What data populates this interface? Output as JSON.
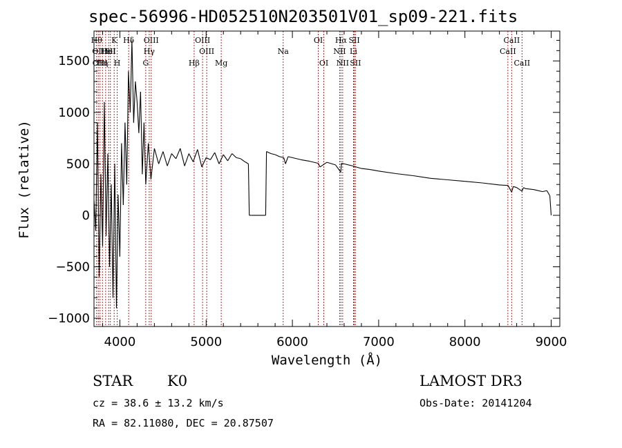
{
  "chart_data": {
    "type": "line",
    "title": "spec-56996-HD052510N203501V01_sp09-221.fits",
    "xlabel": "Wavelength (Å)",
    "ylabel": "Flux (relative)",
    "xlim": [
      3700,
      9100
    ],
    "ylim": [
      -1080,
      1790
    ],
    "xticks": [
      4000,
      5000,
      6000,
      7000,
      8000,
      9000
    ],
    "yticks": [
      -1000,
      -500,
      0,
      500,
      1000,
      1500
    ],
    "series": [
      {
        "name": "flux",
        "x": [
          3700,
          3720,
          3740,
          3760,
          3780,
          3800,
          3820,
          3840,
          3860,
          3880,
          3900,
          3920,
          3940,
          3960,
          3980,
          4000,
          4020,
          4040,
          4060,
          4080,
          4100,
          4120,
          4140,
          4160,
          4180,
          4200,
          4220,
          4240,
          4260,
          4280,
          4300,
          4330,
          4360,
          4400,
          4450,
          4500,
          4550,
          4600,
          4650,
          4700,
          4750,
          4800,
          4850,
          4900,
          4950,
          5000,
          5050,
          5100,
          5150,
          5200,
          5250,
          5300,
          5350,
          5400,
          5450,
          5490,
          5500,
          5520,
          5680,
          5690,
          5700,
          5750,
          5800,
          5850,
          5900,
          5920,
          5950,
          6000,
          6100,
          6200,
          6300,
          6320,
          6400,
          6500,
          6560,
          6570,
          6600,
          6700,
          6800,
          6900,
          7000,
          7200,
          7400,
          7600,
          7800,
          8000,
          8200,
          8400,
          8500,
          8542,
          8560,
          8600,
          8662,
          8680,
          8700,
          8800,
          8900,
          8950,
          8985,
          9000
        ],
        "y": [
          150,
          -150,
          900,
          -600,
          400,
          -300,
          1100,
          -200,
          600,
          -500,
          300,
          -800,
          500,
          -900,
          200,
          -400,
          700,
          100,
          900,
          300,
          1400,
          1000,
          1700,
          900,
          1300,
          1100,
          800,
          1200,
          400,
          900,
          300,
          700,
          350,
          650,
          500,
          620,
          480,
          600,
          550,
          650,
          480,
          600,
          520,
          640,
          470,
          560,
          540,
          610,
          500,
          590,
          530,
          600,
          560,
          550,
          520,
          500,
          0,
          0,
          0,
          0,
          620,
          600,
          590,
          570,
          560,
          500,
          570,
          560,
          540,
          525,
          505,
          470,
          515,
          490,
          420,
          505,
          500,
          480,
          455,
          445,
          430,
          405,
          385,
          360,
          345,
          330,
          315,
          295,
          290,
          225,
          280,
          270,
          235,
          270,
          260,
          250,
          230,
          240,
          190,
          0
        ]
      }
    ],
    "lines": [
      {
        "x": 3730,
        "label": "Hθ",
        "row": 1
      },
      {
        "x": 3750,
        "label": "OII",
        "row": 2
      },
      {
        "x": 3770,
        "label": "OIII",
        "row": 3
      },
      {
        "x": 3798,
        "label": "Hη",
        "row": 3
      },
      {
        "x": 3835,
        "label": "Hε",
        "row": 2
      },
      {
        "x": 3870,
        "label": "HeI",
        "row": 2
      },
      {
        "x": 3890,
        "label": "SII",
        "row": 2
      },
      {
        "x": 3934,
        "label": "K",
        "row": 1
      },
      {
        "x": 3969,
        "label": "H",
        "row": 3
      },
      {
        "x": 4102,
        "label": "Hδ",
        "row": 1
      },
      {
        "x": 4300,
        "label": "G",
        "row": 3
      },
      {
        "x": 4340,
        "label": "Hγ",
        "row": 2
      },
      {
        "x": 4363,
        "label": "OIII",
        "row": 1
      },
      {
        "x": 4861,
        "label": "Hβ",
        "row": 3
      },
      {
        "x": 4959,
        "label": "OIII",
        "row": 1
      },
      {
        "x": 5007,
        "label": "OIII",
        "row": 2
      },
      {
        "x": 5175,
        "label": "Mg",
        "row": 3
      },
      {
        "x": 5893,
        "label": "Na",
        "row": 2
      },
      {
        "x": 6300,
        "label": "OI",
        "row": 1
      },
      {
        "x": 6364,
        "label": "OI",
        "row": 3
      },
      {
        "x": 6548,
        "label": "NII",
        "row": 2
      },
      {
        "x": 6563,
        "label": "Hα",
        "row": 1
      },
      {
        "x": 6583,
        "label": "NII",
        "row": 3
      },
      {
        "x": 6708,
        "label": "Li",
        "row": 2
      },
      {
        "x": 6717,
        "label": "SII",
        "row": 1
      },
      {
        "x": 6731,
        "label": "SII",
        "row": 3
      },
      {
        "x": 8498,
        "label": "CaII",
        "row": 2
      },
      {
        "x": 8542,
        "label": "CaII",
        "row": 1
      },
      {
        "x": 8662,
        "label": "CaII",
        "row": 3
      }
    ]
  },
  "info": {
    "class": "STAR",
    "subclass": "K0",
    "survey": "LAMOST DR3",
    "cz": "cz = 38.6 ± 13.2 km/s",
    "obsdate": "Obs-Date: 20141204",
    "radec": "RA =  82.11080, DEC =  20.87507"
  },
  "colors": {
    "axis": "#000000",
    "trace": "#000000",
    "marker": "#b22222"
  }
}
